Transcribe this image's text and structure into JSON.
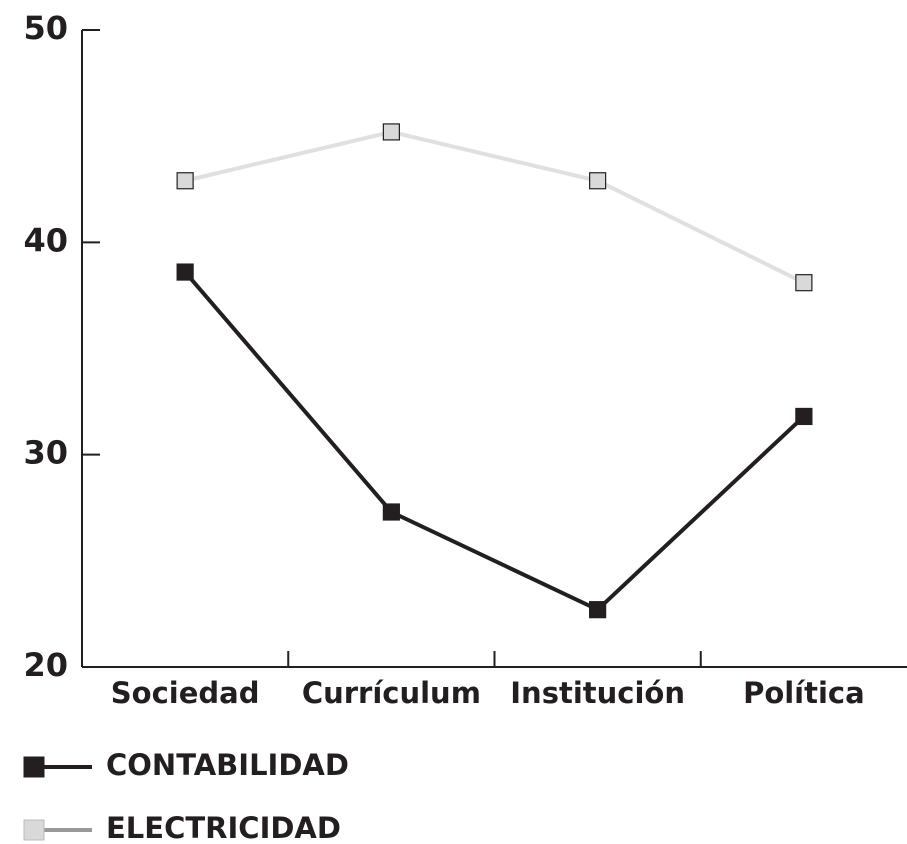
{
  "chart_data": {
    "type": "line",
    "categories": [
      "Sociedad",
      "Currículum",
      "Institución",
      "Política"
    ],
    "series": [
      {
        "name": "CONTABILIDAD",
        "color": "#231f20",
        "marker_fill": "#231f20",
        "values": [
          38.6,
          27.3,
          22.7,
          31.8
        ]
      },
      {
        "name": "ELECTRICIDAD",
        "color": "#e0e0e0",
        "marker_fill": "#d9d9d9",
        "values": [
          42.9,
          45.2,
          42.9,
          38.1
        ]
      }
    ],
    "ylim": [
      20,
      50
    ],
    "yticks": [
      20,
      30,
      40,
      50
    ]
  }
}
